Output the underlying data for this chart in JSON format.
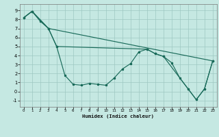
{
  "xlabel": "Humidex (Indice chaleur)",
  "bg_color": "#c5e8e2",
  "grid_color": "#9dc8c2",
  "line_color": "#1a6b5a",
  "xlim": [
    -0.5,
    23.5
  ],
  "ylim": [
    -1.7,
    9.7
  ],
  "xticks": [
    0,
    1,
    2,
    3,
    4,
    5,
    6,
    7,
    8,
    9,
    10,
    11,
    12,
    13,
    14,
    15,
    16,
    17,
    18,
    19,
    20,
    21,
    22,
    23
  ],
  "yticks": [
    -1,
    0,
    1,
    2,
    3,
    4,
    5,
    6,
    7,
    8,
    9
  ],
  "line1_x": [
    0,
    1,
    2,
    3,
    4,
    5,
    6,
    7,
    8,
    9,
    10,
    11,
    12,
    13,
    14,
    15,
    16,
    17,
    18,
    19,
    20,
    21,
    22,
    23
  ],
  "line1_y": [
    8.2,
    8.9,
    7.8,
    7.0,
    5.0,
    1.8,
    0.8,
    0.7,
    0.9,
    0.8,
    0.7,
    1.5,
    2.5,
    3.1,
    4.4,
    4.7,
    4.2,
    3.9,
    3.2,
    1.5,
    0.3,
    -0.9,
    0.3,
    3.4
  ],
  "line2_x": [
    0,
    1,
    3,
    23
  ],
  "line2_y": [
    8.2,
    8.9,
    7.0,
    3.4
  ],
  "line3_x": [
    0,
    1,
    3,
    4,
    15,
    16,
    17,
    20,
    21,
    22,
    23
  ],
  "line3_y": [
    8.2,
    8.9,
    7.0,
    5.0,
    4.7,
    4.2,
    3.9,
    0.3,
    -0.9,
    0.3,
    3.4
  ]
}
